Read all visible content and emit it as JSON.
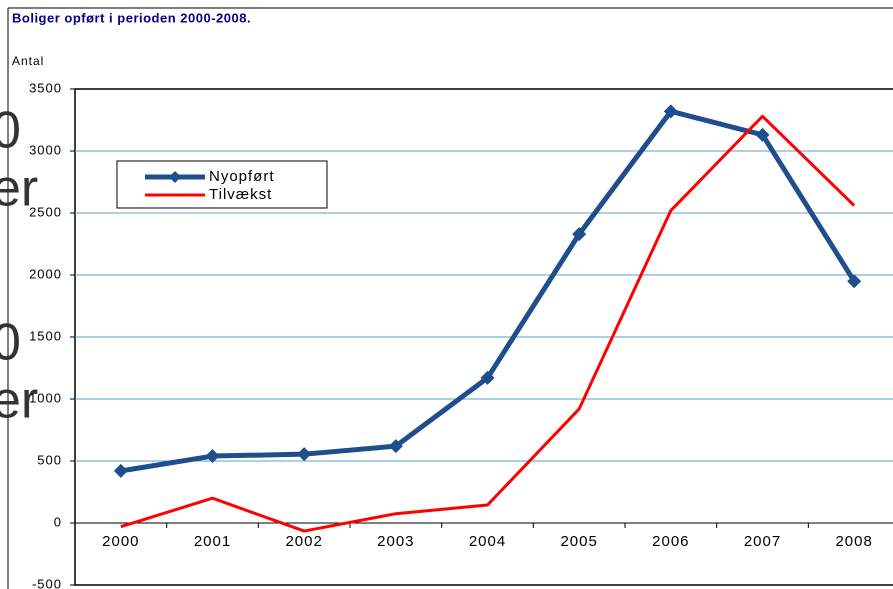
{
  "chart_data": {
    "type": "line",
    "title": "Boliger opført i perioden 2000-2008.",
    "y_label": "Antal",
    "background_fragments": [
      "0",
      "er",
      "0",
      "er"
    ],
    "categories": [
      "2000",
      "2001",
      "2002",
      "2003",
      "2004",
      "2005",
      "2006",
      "2007",
      "2008"
    ],
    "series": [
      {
        "name": "Nyopført",
        "color": "#1f4e8c",
        "marker": "diamond",
        "values": [
          420,
          540,
          555,
          620,
          1170,
          2330,
          3320,
          3130,
          1950
        ]
      },
      {
        "name": "Tilvækst",
        "color": "#ff0000",
        "values": [
          -30,
          200,
          -65,
          75,
          145,
          920,
          2520,
          3280,
          2560
        ]
      }
    ],
    "ylim": [
      -500,
      3500
    ],
    "yticks": [
      -500,
      0,
      500,
      1000,
      1500,
      2000,
      2500,
      3000,
      3500
    ],
    "grid": true,
    "legend": "upper left"
  }
}
